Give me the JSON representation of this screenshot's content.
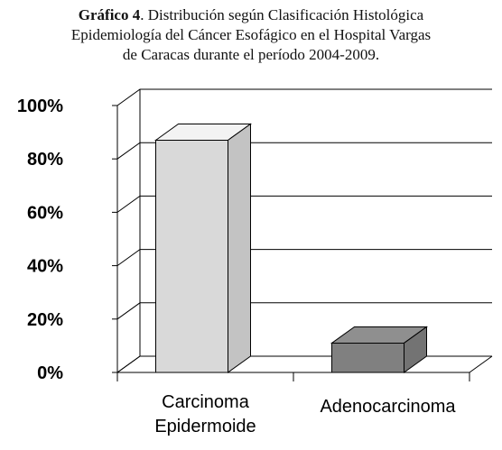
{
  "chart_data": {
    "type": "bar3d",
    "title_label": "Gráfico 4",
    "title_lines": [
      ". Distribución según Clasificación Histológica",
      "Epidemiología del Cáncer Esofágico en el Hospital Vargas",
      "de Caracas durante el período 2004-2009."
    ],
    "categories": [
      "Carcinoma Epidermoide",
      "Adenocarcinoma"
    ],
    "values": [
      87,
      11
    ],
    "colors": [
      "#d9d9d9",
      "#808080"
    ],
    "ylim": [
      0,
      100
    ],
    "yticks": [
      {
        "value": 0,
        "label": "0%"
      },
      {
        "value": 20,
        "label": "20%"
      },
      {
        "value": 40,
        "label": "40%"
      },
      {
        "value": 60,
        "label": "60%"
      },
      {
        "value": 80,
        "label": "80%"
      },
      {
        "value": 100,
        "label": "100%"
      }
    ],
    "grid": true
  }
}
